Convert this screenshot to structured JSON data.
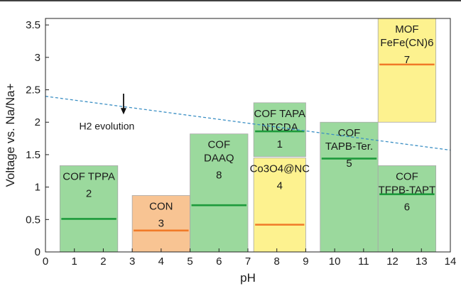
{
  "chart_data": {
    "type": "bar",
    "xlabel": "pH",
    "ylabel": "Voltage vs. Na/Na+",
    "xlim": [
      0,
      14
    ],
    "ylim": [
      0,
      3.6
    ],
    "xticks": [
      0,
      1,
      2,
      3,
      4,
      5,
      6,
      7,
      8,
      9,
      10,
      11,
      12,
      13,
      14
    ],
    "yticks": [
      0,
      0.5,
      1,
      1.5,
      2,
      2.5,
      3,
      3.5
    ],
    "grid": false,
    "colors": {
      "green_box": "#9bd99d",
      "orange_box": "#f8c493",
      "yellow_box": "#fdf28f",
      "green_line": "#1e9a3c",
      "orange_line": "#f07a28",
      "h2_line": "#3b8fc4"
    },
    "boxes": [
      {
        "id": "2",
        "lines": [
          "COF TPPA"
        ],
        "ph_range": [
          0.5,
          2.5
        ],
        "voltage_range": [
          0,
          1.33
        ],
        "line_voltage": 0.51,
        "box_color": "green",
        "line_color": "green"
      },
      {
        "id": "3",
        "lines": [
          "CON"
        ],
        "ph_range": [
          3.0,
          5.0
        ],
        "voltage_range": [
          0,
          0.87
        ],
        "line_voltage": 0.33,
        "box_color": "orange",
        "line_color": "orange"
      },
      {
        "id": "8",
        "lines": [
          "COF",
          "DAAQ"
        ],
        "ph_range": [
          5.0,
          7.0
        ],
        "voltage_range": [
          0,
          1.82
        ],
        "line_voltage": 0.72,
        "box_color": "green",
        "line_color": "green"
      },
      {
        "id": "1",
        "lines": [
          "COF TAPA",
          "NTCDA"
        ],
        "ph_range": [
          7.2,
          9.0
        ],
        "voltage_range": [
          1.47,
          2.3
        ],
        "line_voltage": 1.86,
        "box_color": "green",
        "line_color": "green"
      },
      {
        "id": "4",
        "lines": [
          "Co3O4@NC"
        ],
        "ph_range": [
          7.2,
          9.0
        ],
        "voltage_range": [
          0,
          1.45
        ],
        "line_voltage": 0.42,
        "box_color": "yellow",
        "line_color": "orange"
      },
      {
        "id": "5",
        "lines": [
          "COF",
          "TAPB-Ter."
        ],
        "ph_range": [
          9.5,
          11.5
        ],
        "voltage_range": [
          0,
          2.0
        ],
        "line_voltage": 1.44,
        "box_color": "green",
        "line_color": "green"
      },
      {
        "id": "6",
        "lines": [
          "COF",
          "TFPB-TAPT"
        ],
        "ph_range": [
          11.5,
          13.5
        ],
        "voltage_range": [
          0,
          1.33
        ],
        "line_voltage": 0.89,
        "box_color": "green",
        "line_color": "green"
      },
      {
        "id": "7",
        "lines": [
          "MOF",
          "FeFe(CN)6"
        ],
        "ph_range": [
          11.5,
          13.5
        ],
        "voltage_range": [
          2.0,
          3.6
        ],
        "line_voltage": 2.89,
        "box_color": "yellow",
        "line_color": "orange"
      }
    ],
    "h2_evolution": {
      "label": "H2 evolution",
      "line": {
        "x": [
          0,
          14
        ],
        "y": [
          2.4,
          1.57
        ]
      },
      "arrow_ph": 2.7,
      "arrow_from": 2.44,
      "arrow_to": 2.12,
      "label_ph": 2.0,
      "label_voltage": 1.94
    }
  }
}
